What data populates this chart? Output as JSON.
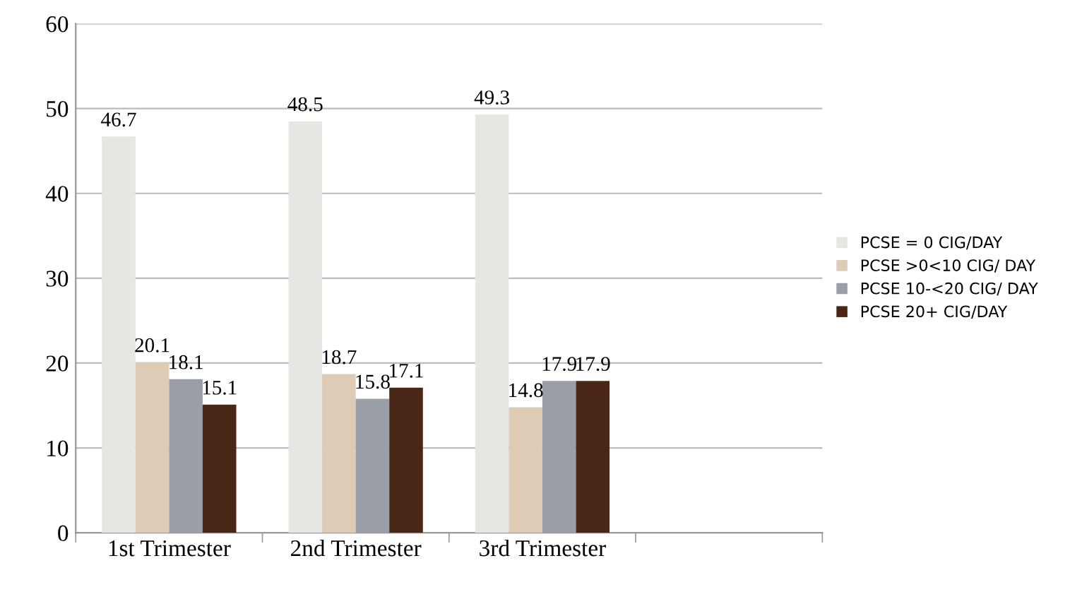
{
  "chart_data": {
    "type": "bar",
    "categories": [
      "1st Trimester",
      "2nd Trimester",
      "3rd Trimester"
    ],
    "series": [
      {
        "name": "PCSE = 0 CIG/DAY",
        "color": "#e6e6e2",
        "values": [
          46.7,
          48.5,
          49.3
        ]
      },
      {
        "name": "PCSE >0<10 CIG/ DAY",
        "color": "#ddcbb6",
        "values": [
          20.1,
          18.7,
          14.8
        ]
      },
      {
        "name": "PCSE 10-<20 CIG/ DAY",
        "color": "#9a9ea6",
        "values": [
          18.1,
          15.8,
          17.9
        ]
      },
      {
        "name": "PCSE 20+ CIG/DAY",
        "color": "#4a2616",
        "values": [
          15.1,
          17.1,
          17.9
        ]
      }
    ],
    "ylim": [
      0,
      60
    ],
    "yticks": [
      0,
      10,
      20,
      30,
      40,
      50,
      60
    ],
    "grid": "y",
    "legend": "right",
    "data_labels": true
  }
}
